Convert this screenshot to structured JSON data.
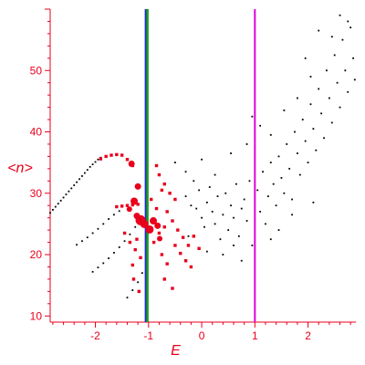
{
  "chart_data": {
    "type": "scatter",
    "xlabel": "E",
    "ylabel": "<n>",
    "xlim": [
      -2.85,
      2.9
    ],
    "ylim": [
      9,
      60
    ],
    "x_ticks": [
      -2,
      -1,
      0,
      1,
      2
    ],
    "y_ticks": [
      10,
      20,
      30,
      40,
      50
    ],
    "grid": false,
    "colors": {
      "axis": "#e8001c",
      "black_series": "#000000",
      "red_series": "#e8001c",
      "band_blue": "#1f28d6",
      "band_green": "#1aa01a",
      "magenta_line": "#e000e0"
    },
    "vertical_lines": [
      {
        "x": -1.05,
        "color": "#1f28d6",
        "style": "band"
      },
      {
        "x": -1.02,
        "color": "#1aa01a",
        "style": "band"
      },
      {
        "x": 1.0,
        "color": "#e000e0",
        "style": "line"
      }
    ],
    "series": [
      {
        "marker": "dot",
        "color": "#000000",
        "points": [
          [
            -2.85,
            26.8
          ],
          [
            -2.8,
            27.3
          ],
          [
            -2.75,
            27.8
          ],
          [
            -2.7,
            28.3
          ],
          [
            -2.65,
            28.8
          ],
          [
            -2.6,
            29.3
          ],
          [
            -2.55,
            29.8
          ],
          [
            -2.5,
            30.3
          ],
          [
            -2.45,
            30.8
          ],
          [
            -2.4,
            31.3
          ],
          [
            -2.35,
            31.8
          ],
          [
            -2.3,
            32.3
          ],
          [
            -2.25,
            32.8
          ],
          [
            -2.2,
            33.3
          ],
          [
            -2.15,
            33.8
          ],
          [
            -2.1,
            34.3
          ],
          [
            -2.05,
            34.7
          ],
          [
            -2.0,
            35.1
          ],
          [
            -1.95,
            35.5
          ],
          [
            -1.9,
            35.8
          ],
          [
            -2.35,
            21.6
          ],
          [
            -2.25,
            22.2
          ],
          [
            -2.15,
            22.8
          ],
          [
            -2.05,
            23.5
          ],
          [
            -1.95,
            24.2
          ],
          [
            -1.85,
            25.0
          ],
          [
            -1.75,
            25.8
          ],
          [
            -1.65,
            26.5
          ],
          [
            -1.55,
            27.1
          ],
          [
            -2.05,
            17.2
          ],
          [
            -1.95,
            17.9
          ],
          [
            -1.85,
            18.6
          ],
          [
            -1.75,
            19.4
          ],
          [
            -1.65,
            20.3
          ],
          [
            -1.55,
            21.2
          ],
          [
            -1.45,
            22.2
          ],
          [
            -1.35,
            23.3
          ],
          [
            -1.25,
            24.5
          ],
          [
            -1.4,
            13.0
          ],
          [
            -1.3,
            14.2
          ],
          [
            -1.2,
            15.5
          ],
          [
            -1.12,
            17.0
          ],
          [
            -0.5,
            35.0
          ],
          [
            -0.3,
            33.5
          ],
          [
            -0.15,
            32.0
          ],
          [
            -0.3,
            29.5
          ],
          [
            -0.2,
            28.0
          ],
          [
            -0.1,
            27.5
          ],
          [
            -0.05,
            30.5
          ],
          [
            0.0,
            26.0
          ],
          [
            0.05,
            24.5
          ],
          [
            0.1,
            28.5
          ],
          [
            0.15,
            31.0
          ],
          [
            0.2,
            27.0
          ],
          [
            0.25,
            25.0
          ],
          [
            0.3,
            29.5
          ],
          [
            0.35,
            22.5
          ],
          [
            0.4,
            26.5
          ],
          [
            0.45,
            30.0
          ],
          [
            0.5,
            24.0
          ],
          [
            0.55,
            28.0
          ],
          [
            0.6,
            26.0
          ],
          [
            0.65,
            31.5
          ],
          [
            0.7,
            23.0
          ],
          [
            0.75,
            27.5
          ],
          [
            0.8,
            29.0
          ],
          [
            0.85,
            25.5
          ],
          [
            0.9,
            32.0
          ],
          [
            0.95,
            21.5
          ],
          [
            1.05,
            30.5
          ],
          [
            1.1,
            27.0
          ],
          [
            1.15,
            33.5
          ],
          [
            1.2,
            25.0
          ],
          [
            1.25,
            29.5
          ],
          [
            1.3,
            35.0
          ],
          [
            1.35,
            31.5
          ],
          [
            1.4,
            28.0
          ],
          [
            1.45,
            36.0
          ],
          [
            1.5,
            32.5
          ],
          [
            1.55,
            30.0
          ],
          [
            1.6,
            38.0
          ],
          [
            1.65,
            34.0
          ],
          [
            1.7,
            29.0
          ],
          [
            1.75,
            40.0
          ],
          [
            1.8,
            36.5
          ],
          [
            1.85,
            33.0
          ],
          [
            1.9,
            42.0
          ],
          [
            1.95,
            38.5
          ],
          [
            2.0,
            35.0
          ],
          [
            2.05,
            44.5
          ],
          [
            2.1,
            40.5
          ],
          [
            2.15,
            37.0
          ],
          [
            2.2,
            47.0
          ],
          [
            2.25,
            43.0
          ],
          [
            2.3,
            39.0
          ],
          [
            2.35,
            50.0
          ],
          [
            2.4,
            45.5
          ],
          [
            2.45,
            41.5
          ],
          [
            2.5,
            52.5
          ],
          [
            2.55,
            48.0
          ],
          [
            2.6,
            44.0
          ],
          [
            2.65,
            55.0
          ],
          [
            2.7,
            50.0
          ],
          [
            2.75,
            46.5
          ],
          [
            2.8,
            57.0
          ],
          [
            2.85,
            52.0
          ],
          [
            2.88,
            48.5
          ],
          [
            2.6,
            59.0
          ],
          [
            2.75,
            58.0
          ],
          [
            2.2,
            56.5
          ],
          [
            2.45,
            55.5
          ],
          [
            1.95,
            52.0
          ],
          [
            2.05,
            49.0
          ],
          [
            1.3,
            39.5
          ],
          [
            1.1,
            41.0
          ],
          [
            0.85,
            38.0
          ],
          [
            0.55,
            36.5
          ],
          [
            0.95,
            42.5
          ],
          [
            1.55,
            43.5
          ],
          [
            1.8,
            45.5
          ],
          [
            0.4,
            20.0
          ],
          [
            0.6,
            21.5
          ],
          [
            0.75,
            19.0
          ],
          [
            1.3,
            22.5
          ],
          [
            1.45,
            24.0
          ],
          [
            1.7,
            26.5
          ],
          [
            2.1,
            28.5
          ],
          [
            0.25,
            33.0
          ],
          [
            0.0,
            35.5
          ],
          [
            -0.25,
            23.0
          ],
          [
            0.1,
            20.5
          ]
        ]
      },
      {
        "marker": "square",
        "color": "#e8001c",
        "points": [
          [
            -1.9,
            35.6
          ],
          [
            -1.8,
            36.0
          ],
          [
            -1.7,
            36.2
          ],
          [
            -1.6,
            36.3
          ],
          [
            -1.5,
            36.2
          ],
          [
            -1.4,
            35.5
          ],
          [
            -1.3,
            34.5
          ],
          [
            -1.6,
            27.8
          ],
          [
            -1.5,
            27.9
          ],
          [
            -1.4,
            28.0
          ],
          [
            -1.3,
            28.1
          ],
          [
            -1.2,
            28.2
          ],
          [
            -1.45,
            23.5
          ],
          [
            -1.35,
            22.0
          ],
          [
            -1.25,
            20.8
          ],
          [
            -1.15,
            19.5
          ],
          [
            -0.8,
            33.0
          ],
          [
            -0.7,
            31.5
          ],
          [
            -0.6,
            30.0
          ],
          [
            -0.5,
            29.0
          ],
          [
            -0.5,
            21.5
          ],
          [
            -0.4,
            20.2
          ],
          [
            -0.3,
            19.0
          ],
          [
            -0.2,
            18.0
          ],
          [
            -0.55,
            25.5
          ],
          [
            -0.45,
            24.0
          ],
          [
            -0.35,
            22.8
          ],
          [
            -0.25,
            21.5
          ],
          [
            -0.15,
            23.0
          ],
          [
            -0.05,
            21.0
          ],
          [
            -0.7,
            16.0
          ],
          [
            -0.55,
            14.5
          ],
          [
            -1.3,
            18.3
          ],
          [
            -1.22,
            22.5
          ],
          [
            -1.28,
            16.0
          ],
          [
            -1.18,
            14.0
          ],
          [
            -0.75,
            30.5
          ],
          [
            -0.95,
            29.0
          ],
          [
            -0.85,
            27.5
          ],
          [
            -0.9,
            22.0
          ],
          [
            -0.8,
            23.5
          ],
          [
            -0.7,
            24.5
          ],
          [
            -0.75,
            20.0
          ],
          [
            -0.65,
            18.5
          ],
          [
            -0.85,
            34.5
          ],
          [
            -0.65,
            27.0
          ]
        ]
      },
      {
        "marker": "circle",
        "color": "#e8001c",
        "points": [
          [
            -1.32,
            34.8,
            5
          ],
          [
            -1.27,
            28.7,
            6
          ],
          [
            -1.22,
            26.3,
            5
          ],
          [
            -1.15,
            25.6,
            9
          ],
          [
            -1.08,
            25.0,
            7
          ],
          [
            -0.98,
            24.1,
            7
          ],
          [
            -0.91,
            25.5,
            6
          ],
          [
            -0.83,
            24.7,
            5
          ],
          [
            -0.79,
            22.6,
            4
          ],
          [
            -1.2,
            31.1,
            5
          ],
          [
            -1.36,
            27.4,
            4
          ]
        ]
      }
    ]
  }
}
